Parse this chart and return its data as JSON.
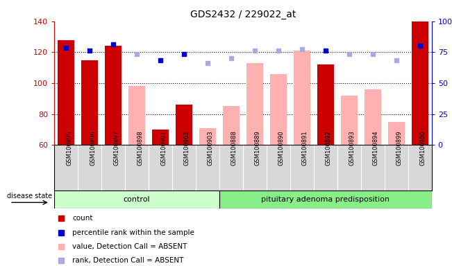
{
  "title": "GDS2432 / 229022_at",
  "samples": [
    "GSM100895",
    "GSM100896",
    "GSM100897",
    "GSM100898",
    "GSM100901",
    "GSM100902",
    "GSM100903",
    "GSM100888",
    "GSM100889",
    "GSM100890",
    "GSM100891",
    "GSM100892",
    "GSM100893",
    "GSM100894",
    "GSM100899",
    "GSM100900"
  ],
  "count_values": [
    128,
    115,
    124,
    null,
    70,
    86,
    null,
    null,
    null,
    null,
    null,
    112,
    null,
    null,
    null,
    140
  ],
  "absent_value": [
    null,
    null,
    null,
    98,
    null,
    null,
    71,
    85,
    113,
    106,
    121,
    null,
    92,
    96,
    75,
    null
  ],
  "percentile_rank": [
    123,
    121,
    125,
    null,
    115,
    119,
    null,
    null,
    null,
    null,
    null,
    121,
    null,
    null,
    null,
    124
  ],
  "absent_rank": [
    null,
    null,
    null,
    119,
    null,
    null,
    113,
    116,
    121,
    121,
    122,
    null,
    119,
    119,
    115,
    null
  ],
  "ylim": [
    60,
    140
  ],
  "yticks_left": [
    60,
    80,
    100,
    120,
    140
  ],
  "yticks_right_labels": [
    "0",
    "25",
    "50",
    "75",
    "100%"
  ],
  "control_count": 7,
  "total_count": 16,
  "bar_color_red": "#cc0000",
  "bar_color_pink": "#ffb0b0",
  "dot_color_blue": "#0000cc",
  "dot_color_lightblue": "#aaaadd",
  "group_color_control": "#ccffcc",
  "group_color_pituitary": "#88ee88",
  "background_gray": "#d8d8d8",
  "col_sep_color": "#bbbbbb"
}
